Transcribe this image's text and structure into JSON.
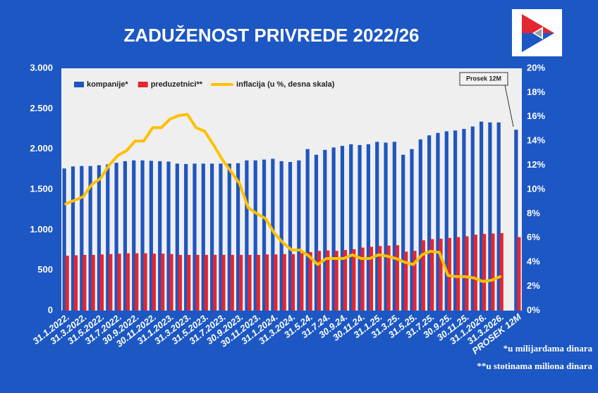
{
  "chart_data": {
    "type": "bar",
    "title": "ZADUŽENOST PRIVREDE  2022/26",
    "categories": [
      "31.1.2022.",
      null,
      "31.3.2022.",
      null,
      "31.5.2022.",
      null,
      "31.7.2022.",
      null,
      "30.9.2022.",
      null,
      "30.11.2022.",
      null,
      "31.1.2023.",
      null,
      "31.3.2023.",
      null,
      "31.5.2023.",
      null,
      "31.7.2023.",
      null,
      "30.9.2023.",
      null,
      "30.11.2023.",
      null,
      "31.1.2024.",
      null,
      "31.3.2024.",
      null,
      "31.5.24.",
      null,
      "31.7.24.",
      null,
      "30.9.24.",
      null,
      "30.11.24.",
      null,
      "31.1.25.",
      null,
      "31.3.25.",
      null,
      "31.5.25.",
      null,
      "31.7.25.",
      null,
      "30.9.25.",
      null,
      "30.11.25.",
      null,
      "31.1.2026.",
      null,
      "31.3.2026.",
      null,
      "PROSEK 12M"
    ],
    "series": [
      {
        "name": "kompanije*",
        "color": "#1f55bf",
        "type": "bar",
        "values": [
          1760,
          1785,
          1790,
          1790,
          1800,
          1810,
          1830,
          1850,
          1860,
          1860,
          1855,
          1850,
          1845,
          1820,
          1815,
          1820,
          1820,
          1820,
          1820,
          1820,
          1825,
          1860,
          1860,
          1870,
          1880,
          1850,
          1840,
          1860,
          2000,
          1930,
          1990,
          2020,
          2040,
          2060,
          2050,
          2060,
          2090,
          2080,
          2090,
          1930,
          2000,
          2120,
          2170,
          2200,
          2220,
          2230,
          2250,
          2280,
          2340,
          2330,
          2330,
          null,
          2240
        ]
      },
      {
        "name": "preduzetnici**",
        "color": "#e32630",
        "type": "bar",
        "values": [
          680,
          685,
          690,
          690,
          695,
          700,
          705,
          710,
          710,
          710,
          705,
          705,
          700,
          690,
          690,
          690,
          690,
          690,
          690,
          690,
          690,
          690,
          690,
          695,
          695,
          700,
          700,
          710,
          725,
          740,
          745,
          740,
          750,
          760,
          780,
          790,
          800,
          805,
          810,
          730,
          740,
          870,
          885,
          890,
          900,
          910,
          920,
          940,
          950,
          955,
          960,
          null,
          910
        ]
      },
      {
        "name": "inflacija  (u %, desna skala)",
        "color": "#ffc000",
        "type": "line",
        "axis": "y2",
        "values": [
          8.8,
          9.1,
          9.4,
          10.4,
          10.9,
          12.0,
          12.8,
          13.2,
          14.0,
          14.0,
          15.1,
          15.1,
          15.8,
          16.1,
          16.2,
          15.1,
          14.8,
          13.7,
          12.5,
          11.5,
          10.5,
          8.5,
          8.0,
          7.6,
          6.4,
          5.6,
          5.0,
          5.0,
          4.5,
          3.8,
          4.3,
          4.3,
          4.3,
          4.6,
          4.3,
          4.3,
          4.6,
          4.5,
          4.3,
          4.0,
          3.8,
          4.6,
          4.9,
          4.8,
          2.9,
          2.8,
          2.8,
          2.7,
          2.4,
          2.5,
          2.8,
          null,
          null
        ]
      }
    ],
    "ylim": [
      0,
      3000
    ],
    "yticks": [
      0,
      500,
      {
        "value": 1000,
        "label": "1.000"
      },
      {
        "value": 1500,
        "label": "1.500"
      },
      {
        "value": 2000,
        "label": "2.000"
      },
      {
        "value": 2500,
        "label": "2.500"
      },
      {
        "value": 3000,
        "label": "3.000"
      }
    ],
    "y2lim": [
      0,
      20
    ],
    "y2ticks": [
      {
        "value": 0,
        "label": "0%"
      },
      {
        "value": 2,
        "label": "2%"
      },
      {
        "value": 4,
        "label": "4%"
      },
      {
        "value": 6,
        "label": "6%"
      },
      {
        "value": 8,
        "label": "8%"
      },
      {
        "value": 10,
        "label": "10%"
      },
      {
        "value": 12,
        "label": "12%"
      },
      {
        "value": 14,
        "label": "14%"
      },
      {
        "value": 16,
        "label": "16%"
      },
      {
        "value": 18,
        "label": "18%"
      },
      {
        "value": 20,
        "label": "20%"
      }
    ],
    "grid": false,
    "legend": "top-left",
    "annotation": "Prosek 12M",
    "notes": [
      "*u milijardama dinara",
      "**u stotinama miliona dinara"
    ]
  }
}
